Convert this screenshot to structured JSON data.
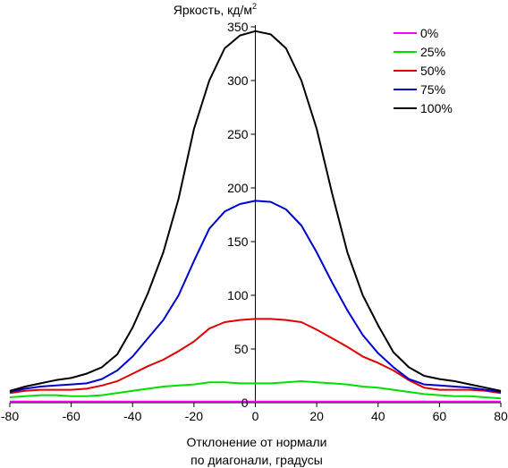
{
  "chart_data": {
    "type": "line",
    "title": "",
    "ylabel_main": "Яркость, кд/м",
    "ylabel_sup": "2",
    "xlabel_line1": "Отклонение от нормали",
    "xlabel_line2": "по диагонали, градусы",
    "xlim": [
      -80,
      80
    ],
    "ylim": [
      0,
      350
    ],
    "xticks": [
      -80,
      -60,
      -40,
      -20,
      0,
      20,
      40,
      60,
      80
    ],
    "yticks": [
      0,
      50,
      100,
      150,
      200,
      250,
      300,
      350
    ],
    "grid": false,
    "legend_position": "top-right",
    "x": [
      -80,
      -75,
      -70,
      -65,
      -60,
      -55,
      -50,
      -45,
      -40,
      -35,
      -30,
      -25,
      -20,
      -15,
      -10,
      -5,
      0,
      5,
      10,
      15,
      20,
      25,
      30,
      35,
      40,
      45,
      50,
      55,
      60,
      65,
      70,
      75,
      80
    ],
    "series": [
      {
        "name": "0%",
        "color": "#ff00ff",
        "values": [
          1,
          1,
          1,
          1,
          1,
          1,
          1,
          1,
          1,
          1,
          1,
          1,
          1,
          1,
          1,
          1,
          1,
          1,
          1,
          1,
          1,
          1,
          1,
          1,
          1,
          1,
          1,
          1,
          1,
          1,
          1,
          1,
          1
        ]
      },
      {
        "name": "25%",
        "color": "#00e000",
        "values": [
          5,
          6,
          7,
          7,
          6,
          6,
          7,
          9,
          11,
          13,
          15,
          16,
          17,
          19,
          19,
          18,
          18,
          18,
          19,
          20,
          19,
          18,
          17,
          15,
          14,
          12,
          10,
          8,
          7,
          6,
          6,
          5,
          4
        ]
      },
      {
        "name": "50%",
        "color": "#e00000",
        "values": [
          9,
          11,
          12,
          12,
          12,
          13,
          16,
          20,
          27,
          34,
          40,
          48,
          57,
          69,
          75,
          77,
          78,
          78,
          77,
          75,
          68,
          60,
          52,
          43,
          37,
          30,
          21,
          14,
          12,
          12,
          12,
          11,
          9
        ]
      },
      {
        "name": "75%",
        "color": "#0000d0",
        "values": [
          10,
          13,
          15,
          16,
          17,
          18,
          22,
          30,
          43,
          60,
          77,
          100,
          132,
          162,
          178,
          185,
          188,
          187,
          180,
          165,
          140,
          112,
          86,
          63,
          46,
          33,
          22,
          17,
          16,
          15,
          14,
          12,
          10
        ]
      },
      {
        "name": "100%",
        "color": "#000000",
        "values": [
          11,
          15,
          18,
          21,
          23,
          27,
          33,
          45,
          70,
          102,
          140,
          190,
          255,
          300,
          330,
          342,
          346,
          343,
          330,
          300,
          255,
          195,
          140,
          100,
          72,
          47,
          33,
          25,
          22,
          20,
          17,
          14,
          11
        ]
      }
    ]
  }
}
